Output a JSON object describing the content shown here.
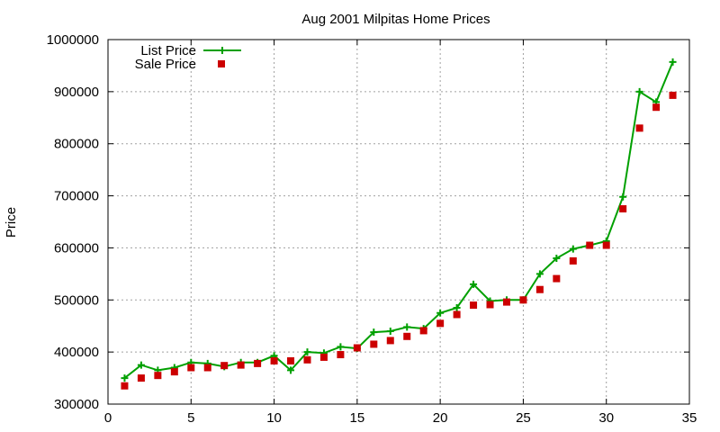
{
  "chart_data": {
    "type": "line",
    "title": "Aug 2001 Milpitas Home Prices",
    "xlabel": "",
    "ylabel": "Price",
    "xlim": [
      0,
      35
    ],
    "ylim": [
      300000,
      1000000
    ],
    "xticks": [
      0,
      5,
      10,
      15,
      20,
      25,
      30,
      35
    ],
    "yticks": [
      300000,
      400000,
      500000,
      600000,
      700000,
      800000,
      900000,
      1000000
    ],
    "grid": true,
    "legend_position": "top-left",
    "x": [
      1,
      2,
      3,
      4,
      5,
      6,
      7,
      8,
      9,
      10,
      11,
      12,
      13,
      14,
      15,
      16,
      17,
      18,
      19,
      20,
      21,
      22,
      23,
      24,
      25,
      26,
      27,
      28,
      29,
      30,
      31,
      32,
      33,
      34
    ],
    "series": [
      {
        "name": "List Price",
        "style": "line-points",
        "color": "#00a000",
        "values": [
          350000,
          375000,
          365000,
          370000,
          380000,
          378000,
          372000,
          380000,
          380000,
          393000,
          365000,
          400000,
          398000,
          410000,
          407000,
          438000,
          440000,
          448000,
          445000,
          475000,
          485000,
          530000,
          498000,
          500000,
          500000,
          550000,
          580000,
          598000,
          605000,
          613000,
          698000,
          900000,
          880000,
          957000
        ]
      },
      {
        "name": "Sale Price",
        "style": "points",
        "color": "#cc0000",
        "values": [
          335000,
          350000,
          355000,
          362000,
          370000,
          370000,
          374000,
          375000,
          378000,
          383000,
          383000,
          385000,
          390000,
          395000,
          408000,
          415000,
          422000,
          430000,
          441000,
          455000,
          472000,
          490000,
          491000,
          496000,
          500000,
          520000,
          541000,
          575000,
          605000,
          605000,
          675000,
          830000,
          870000,
          893000
        ]
      }
    ]
  }
}
